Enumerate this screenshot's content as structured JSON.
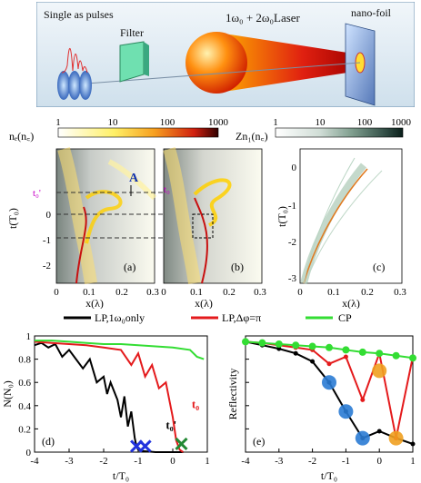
{
  "schematic": {
    "source_label": "Single as pulses",
    "filter_label": "Filter",
    "laser_label": "1ω₀ + 2ω₀Laser",
    "target_label": "nano-foil"
  },
  "colorbars": [
    {
      "label": "nₑ(n꜀)",
      "ticks": [
        "1",
        "10",
        "100",
        "1000"
      ],
      "colors": [
        "#ffffff",
        "#fff066",
        "#f7a020",
        "#d02010",
        "#300000"
      ]
    },
    {
      "label": "Zn₁(n꜀)",
      "ticks": [
        "1",
        "10",
        "100",
        "1000"
      ],
      "colors": [
        "#ffffff",
        "#d0ddd6",
        "#7f9e8e",
        "#36524a",
        "#0a1f1a"
      ]
    }
  ],
  "maps": {
    "ylabel": "t(T₀)",
    "xlabel": "x(λ)",
    "yticks": [
      "0",
      "-1",
      "-2",
      "-3"
    ],
    "yticks_a": [
      "0",
      "-1",
      "-2"
    ],
    "xticks": [
      "0",
      "0.1",
      "0.2",
      "0.3"
    ],
    "panels": [
      {
        "tag": "(a)",
        "marker": "t₀'",
        "annotation": "A"
      },
      {
        "tag": "(b)",
        "marker": "t₀"
      },
      {
        "tag": "(c)"
      }
    ]
  },
  "legend": [
    {
      "label": "LP,1ω₀only",
      "color": "#000000"
    },
    {
      "label": "LP,Δφ=π",
      "color": "#e41a1c"
    },
    {
      "label": "CP",
      "color": "#33dd33"
    }
  ],
  "chart_data": [
    {
      "type": "line",
      "tag": "(d)",
      "xlabel": "t/T₀",
      "ylabel": "N(N₀)",
      "xlim": [
        -4,
        1
      ],
      "ylim": [
        0,
        1
      ],
      "xticks": [
        -4,
        -3,
        -2,
        -1,
        0,
        1
      ],
      "yticks": [
        0,
        0.2,
        0.4,
        0.6,
        0.8,
        1
      ],
      "annotations": [
        "t₀",
        "t₀'"
      ],
      "series": [
        {
          "name": "LP,1ω₀only",
          "color": "#000000",
          "x": [
            -4,
            -3.8,
            -3.6,
            -3.4,
            -3.2,
            -3,
            -2.8,
            -2.6,
            -2.4,
            -2.2,
            -2,
            -1.9,
            -1.8,
            -1.6,
            -1.5,
            -1.4,
            -1.3,
            -1.2,
            -1.1,
            -1.05,
            -1.0,
            -0.9,
            -0.5,
            0,
            0.3
          ],
          "y": [
            0.92,
            0.94,
            0.9,
            0.93,
            0.82,
            0.88,
            0.8,
            0.72,
            0.8,
            0.6,
            0.65,
            0.5,
            0.6,
            0.45,
            0.3,
            0.48,
            0.22,
            0.35,
            0.12,
            0.05,
            0.02,
            0.01,
            0.0,
            0.0,
            0.0
          ]
        },
        {
          "name": "LP,Δφ=π",
          "color": "#e41a1c",
          "x": [
            -4,
            -3.5,
            -3,
            -2.5,
            -2,
            -1.5,
            -1.2,
            -1.0,
            -0.8,
            -0.6,
            -0.4,
            -0.2,
            -0.1,
            0,
            0.1,
            0.2,
            0.3
          ],
          "y": [
            0.95,
            0.94,
            0.93,
            0.92,
            0.9,
            0.88,
            0.75,
            0.85,
            0.65,
            0.75,
            0.55,
            0.6,
            0.45,
            0.3,
            0.1,
            0.02,
            0.0
          ]
        },
        {
          "name": "CP",
          "color": "#33dd33",
          "x": [
            -4,
            -3.5,
            -3,
            -2.5,
            -2,
            -1.5,
            -1,
            -0.5,
            0,
            0.5,
            0.7,
            0.9
          ],
          "y": [
            0.96,
            0.96,
            0.95,
            0.94,
            0.93,
            0.93,
            0.92,
            0.91,
            0.9,
            0.88,
            0.82,
            0.8
          ]
        }
      ],
      "markers": [
        {
          "x": -1.05,
          "y": 0.02,
          "color": "#2233dd",
          "symbol": "x"
        },
        {
          "x": -0.8,
          "y": 0.02,
          "color": "#2233dd",
          "symbol": "x"
        },
        {
          "x": 0.25,
          "y": 0.04,
          "color": "#228833",
          "symbol": "x"
        }
      ]
    },
    {
      "type": "line",
      "tag": "(e)",
      "xlabel": "t/T₀",
      "ylabel": "Reflectivity",
      "xlim": [
        -4,
        1
      ],
      "ylim": [
        0,
        1
      ],
      "xticks": [
        -4,
        -3,
        -2,
        -1,
        0,
        1
      ],
      "yticks": [
        0,
        0.2,
        0.4,
        0.6,
        0.8,
        1
      ],
      "series": [
        {
          "name": "LP,1ω₀only",
          "color": "#000000",
          "x": [
            -4,
            -3.5,
            -3,
            -2.5,
            -2,
            -1.5,
            -1,
            -0.5,
            0,
            0.5,
            1
          ],
          "y": [
            0.95,
            0.92,
            0.89,
            0.85,
            0.78,
            0.6,
            0.35,
            0.12,
            0.18,
            0.12,
            0.07
          ]
        },
        {
          "name": "LP,Δφ=π",
          "color": "#e41a1c",
          "x": [
            -4,
            -3.5,
            -3,
            -2.5,
            -2,
            -1.5,
            -1,
            -0.5,
            0,
            0.5,
            1
          ],
          "y": [
            0.95,
            0.94,
            0.92,
            0.9,
            0.88,
            0.76,
            0.82,
            0.45,
            0.85,
            0.12,
            0.82
          ]
        },
        {
          "name": "CP",
          "color": "#33dd33",
          "x": [
            -4,
            -3.5,
            -3,
            -2.5,
            -2,
            -1.5,
            -1,
            -0.5,
            0,
            0.5,
            1
          ],
          "y": [
            0.95,
            0.94,
            0.93,
            0.92,
            0.91,
            0.9,
            0.88,
            0.86,
            0.85,
            0.83,
            0.81
          ]
        }
      ],
      "circles": [
        {
          "x": -1.5,
          "y": 0.6,
          "color": "#2a7bd4"
        },
        {
          "x": -1.0,
          "y": 0.35,
          "color": "#2a7bd4"
        },
        {
          "x": -0.5,
          "y": 0.12,
          "color": "#2a7bd4"
        },
        {
          "x": 0.0,
          "y": 0.7,
          "color": "#f0a020"
        },
        {
          "x": 0.5,
          "y": 0.12,
          "color": "#f0a020"
        }
      ]
    }
  ]
}
